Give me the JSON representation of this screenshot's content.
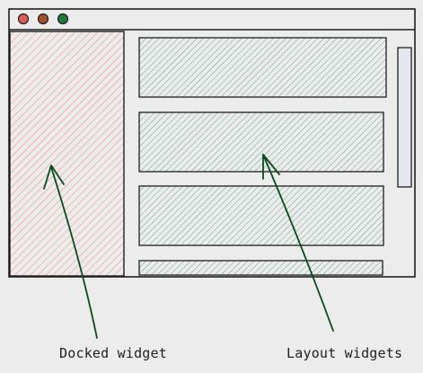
{
  "colors": {
    "background": "#ececec",
    "outline": "#1e1e1e",
    "docked_fill": "#f08c8c",
    "layout_fill": "#74a892",
    "scrollbar_fill": "#e4e8ee",
    "arrow": "#0b4a1c",
    "close_dot": "#e05a5a",
    "minimize_dot": "#a0522d",
    "maximize_dot": "#1f7a3a"
  },
  "window": {
    "traffic_lights": [
      "close-dot",
      "minimize-dot",
      "maximize-dot"
    ],
    "scrollbar": true
  },
  "labels": {
    "docked": "Docked widget",
    "layout": "Layout widgets"
  }
}
